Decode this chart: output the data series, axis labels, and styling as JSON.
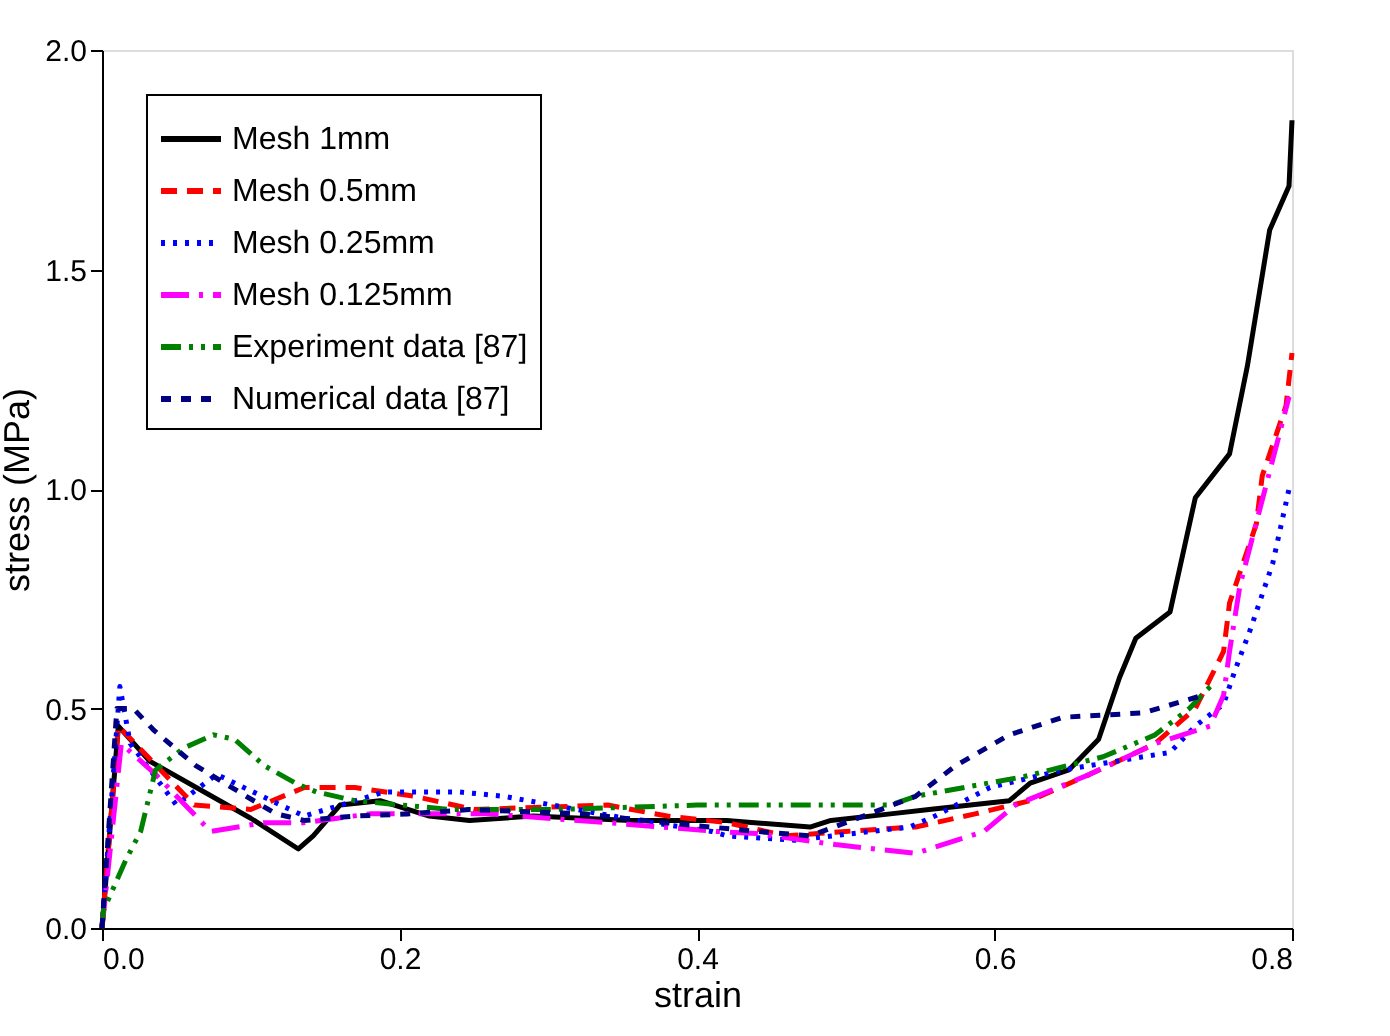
{
  "chart_data": {
    "type": "line",
    "xlabel": "strain",
    "ylabel": "stress (MPa)",
    "xlim": [
      0,
      0.8
    ],
    "ylim": [
      0,
      2.0
    ],
    "xticks": [
      {
        "value": 0,
        "label": "0.0"
      },
      0.2,
      0.4,
      0.6,
      0.8
    ],
    "yticks": [
      {
        "value": 0,
        "label": "0.0"
      },
      0.5,
      {
        "value": 1,
        "label": "1.0"
      },
      1.5,
      {
        "value": 2,
        "label": "2.0"
      }
    ],
    "grid": false,
    "legend": "top left",
    "marker": "none",
    "series": [
      {
        "name": "Mesh 1mm",
        "color": "#000000",
        "line_style": "solid",
        "x": [
          0,
          0.011,
          0.032,
          0.1,
          0.132,
          0.142,
          0.16,
          0.187,
          0.22,
          0.247,
          0.29,
          0.355,
          0.42,
          0.476,
          0.49,
          0.53,
          0.556,
          0.61,
          0.624,
          0.65,
          0.67,
          0.684,
          0.695,
          0.718,
          0.735,
          0.758,
          0.77,
          0.785,
          0.798,
          0.8
        ],
        "values": [
          0,
          0.46,
          0.38,
          0.25,
          0.18,
          0.21,
          0.28,
          0.29,
          0.255,
          0.245,
          0.255,
          0.245,
          0.245,
          0.23,
          0.245,
          0.26,
          0.27,
          0.29,
          0.33,
          0.36,
          0.43,
          0.57,
          0.66,
          0.72,
          0.98,
          1.08,
          1.28,
          1.59,
          1.69,
          1.84
        ]
      },
      {
        "name": "Mesh 0.5mm",
        "color": "#ff0000",
        "line_style": "dashed",
        "x": [
          0,
          0.011,
          0.028,
          0.062,
          0.1,
          0.136,
          0.17,
          0.21,
          0.25,
          0.34,
          0.38,
          0.42,
          0.46,
          0.5,
          0.547,
          0.587,
          0.624,
          0.664,
          0.708,
          0.735,
          0.754,
          0.758,
          0.776,
          0.78,
          0.796,
          0.8
        ],
        "values": [
          0,
          0.46,
          0.4,
          0.28,
          0.27,
          0.32,
          0.32,
          0.3,
          0.27,
          0.28,
          0.255,
          0.24,
          0.21,
          0.22,
          0.23,
          0.26,
          0.29,
          0.35,
          0.42,
          0.5,
          0.63,
          0.74,
          0.92,
          1.03,
          1.19,
          1.31
        ]
      },
      {
        "name": "Mesh 0.25mm",
        "color": "#0000ff",
        "line_style": "dotted",
        "x": [
          0,
          0.012,
          0.019,
          0.05,
          0.077,
          0.12,
          0.136,
          0.19,
          0.24,
          0.27,
          0.36,
          0.41,
          0.42,
          0.466,
          0.543,
          0.56,
          0.597,
          0.646,
          0.7,
          0.718,
          0.735,
          0.754,
          0.762,
          0.772,
          0.787,
          0.798
        ],
        "values": [
          0,
          0.55,
          0.42,
          0.28,
          0.35,
          0.28,
          0.255,
          0.31,
          0.31,
          0.3,
          0.245,
          0.22,
          0.21,
          0.2,
          0.23,
          0.255,
          0.32,
          0.36,
          0.39,
          0.4,
          0.46,
          0.51,
          0.59,
          0.68,
          0.83,
          1.0
        ]
      },
      {
        "name": "Mesh 0.125mm",
        "color": "#ff00ff",
        "line_style": "dashed",
        "x": [
          0,
          0.013,
          0.036,
          0.073,
          0.109,
          0.136,
          0.18,
          0.26,
          0.34,
          0.413,
          0.44,
          0.493,
          0.547,
          0.593,
          0.614,
          0.664,
          0.708,
          0.745,
          0.754,
          0.758,
          0.765,
          0.785,
          0.798
        ],
        "values": [
          0,
          0.42,
          0.35,
          0.22,
          0.24,
          0.24,
          0.26,
          0.26,
          0.24,
          0.22,
          0.215,
          0.19,
          0.17,
          0.22,
          0.28,
          0.35,
          0.42,
          0.46,
          0.53,
          0.63,
          0.78,
          1.04,
          1.21
        ]
      },
      {
        "name": "Experiment data [87]",
        "color": "#008000",
        "line_style": "dashed",
        "x": [
          0,
          0.001,
          0.016,
          0.026,
          0.036,
          0.055,
          0.075,
          0.089,
          0.109,
          0.13,
          0.144,
          0.17,
          0.234,
          0.305,
          0.4,
          0.485,
          0.53,
          0.547,
          0.62,
          0.673,
          0.708,
          0.731,
          0.745
        ],
        "values": [
          0,
          0.04,
          0.155,
          0.22,
          0.36,
          0.41,
          0.44,
          0.43,
          0.37,
          0.33,
          0.31,
          0.29,
          0.27,
          0.27,
          0.28,
          0.28,
          0.28,
          0.3,
          0.345,
          0.39,
          0.44,
          0.5,
          0.55
        ]
      },
      {
        "name": "Numerical data [87]",
        "color": "#000080",
        "line_style": "dashed",
        "x": [
          0,
          0.01,
          0.021,
          0.035,
          0.063,
          0.097,
          0.117,
          0.136,
          0.17,
          0.207,
          0.247,
          0.324,
          0.378,
          0.44,
          0.476,
          0.512,
          0.547,
          0.574,
          0.61,
          0.646,
          0.7,
          0.74
        ],
        "values": [
          0,
          0.5,
          0.5,
          0.45,
          0.37,
          0.3,
          0.26,
          0.245,
          0.255,
          0.26,
          0.27,
          0.26,
          0.24,
          0.22,
          0.21,
          0.255,
          0.3,
          0.37,
          0.44,
          0.48,
          0.49,
          0.53
        ]
      }
    ]
  }
}
